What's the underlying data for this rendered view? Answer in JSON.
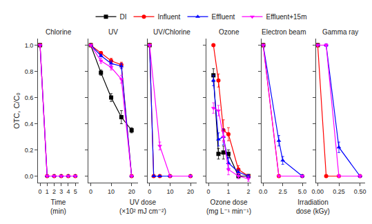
{
  "chart_data": [
    {
      "type": "line",
      "title": "Chlorine",
      "xlabel": "Time\n(min)",
      "ylabel": "OTC, C/C₀",
      "xlim": [
        -0.3,
        5.5
      ],
      "xticks": [
        0,
        1,
        2,
        3,
        4,
        5
      ],
      "ylim": [
        -0.05,
        1.05
      ],
      "yticks": [
        {
          "value": 0.0,
          "label": "0.0"
        },
        0.2,
        0.4,
        0.6,
        0.8,
        {
          "value": 1.0,
          "label": "1.0"
        }
      ],
      "grid": false,
      "series": [
        {
          "name": "DI",
          "color": "#000000",
          "marker": "square",
          "line_style": "solid",
          "x": [
            0
          ],
          "values": [
            1.0
          ],
          "errors": [
            0.0
          ]
        },
        {
          "name": "Influent",
          "color": "#ff0000",
          "marker": "circle",
          "line_style": "solid",
          "x": [
            0,
            1,
            2,
            3,
            4,
            5
          ],
          "values": [
            1.0,
            0.0,
            0.0,
            0.0,
            0.0,
            0.0
          ],
          "errors": [
            0.0,
            0.0,
            0.0,
            0.0,
            0.0,
            0.0
          ]
        },
        {
          "name": "Effluent",
          "color": "#0000ff",
          "marker": "triangle-up",
          "line_style": "solid",
          "x": [
            0,
            1,
            2,
            3,
            4,
            5
          ],
          "values": [
            1.0,
            0.0,
            0.0,
            0.0,
            0.0,
            0.0
          ],
          "errors": [
            0.0,
            0.0,
            0.0,
            0.0,
            0.0,
            0.0
          ]
        },
        {
          "name": "Effluent+15m",
          "color": "#ff00ff",
          "marker": "triangle-down",
          "line_style": "solid",
          "x": [
            0,
            1,
            2,
            3,
            4,
            5
          ],
          "values": [
            1.0,
            0.0,
            0.0,
            0.0,
            0.0,
            0.0
          ],
          "errors": [
            0.0,
            0.0,
            0.0,
            0.0,
            0.0,
            0.0
          ]
        }
      ]
    },
    {
      "type": "line",
      "title": "UV",
      "xlabel": "UV dose\n(×10² mJ cm⁻²)",
      "xlim": [
        -1,
        23
      ],
      "xticks": [
        0,
        10,
        20
      ],
      "ylim": [
        -0.05,
        1.05
      ],
      "yticks": [
        {
          "value": 0.0,
          "label": "0.0"
        },
        0.2,
        0.4,
        0.6,
        0.8,
        {
          "value": 1.0,
          "label": "1.0"
        }
      ],
      "grid": false,
      "tick_labels": "x",
      "series": [
        {
          "name": "DI",
          "color": "#000000",
          "marker": "square",
          "line_style": "solid",
          "x": [
            0,
            5,
            10,
            15,
            20
          ],
          "values": [
            1.0,
            0.79,
            0.6,
            0.45,
            0.35
          ],
          "errors": [
            0.0,
            0.02,
            0.03,
            0.05,
            0.02
          ]
        },
        {
          "name": "Influent",
          "color": "#ff0000",
          "marker": "circle",
          "line_style": "solid",
          "x": [
            0,
            5,
            10,
            15,
            20
          ],
          "values": [
            1.0,
            0.94,
            0.88,
            0.85,
            0.0
          ],
          "errors": [
            0.0,
            0.01,
            0.02,
            0.02,
            0.0
          ]
        },
        {
          "name": "Effluent",
          "color": "#0000ff",
          "marker": "triangle-up",
          "line_style": "solid",
          "x": [
            0,
            5,
            10,
            15,
            20
          ],
          "values": [
            1.0,
            0.92,
            0.86,
            0.84,
            0.0
          ],
          "errors": [
            0.0,
            0.01,
            0.02,
            0.02,
            0.0
          ]
        },
        {
          "name": "Effluent+15m",
          "color": "#ff00ff",
          "marker": "triangle-down",
          "line_style": "solid",
          "x": [
            0,
            5,
            10,
            15,
            20
          ],
          "values": [
            1.0,
            0.88,
            0.83,
            0.74,
            0.0
          ],
          "errors": [
            0.0,
            0.02,
            0.02,
            0.03,
            0.0
          ]
        }
      ]
    },
    {
      "type": "line",
      "title": "UV/Chlorine",
      "xlim": [
        -1,
        23
      ],
      "xticks": [
        0,
        10,
        20
      ],
      "ylim": [
        -0.05,
        1.05
      ],
      "yticks": [
        {
          "value": 0.0,
          "label": "0.0"
        },
        0.2,
        0.4,
        0.6,
        0.8,
        {
          "value": 1.0,
          "label": "1.0"
        }
      ],
      "grid": false,
      "tick_labels": "x",
      "series": [
        {
          "name": "DI",
          "color": "#000000",
          "marker": "square",
          "line_style": "solid",
          "x": [
            0
          ],
          "values": [
            1.0
          ],
          "errors": [
            0.0
          ]
        },
        {
          "name": "Influent",
          "color": "#ff0000",
          "marker": "circle",
          "line_style": "solid",
          "x": [
            0,
            2,
            5,
            10,
            20
          ],
          "values": [
            1.0,
            0.0,
            0.0,
            0.0,
            0.0
          ],
          "errors": [
            0.0,
            0.0,
            0.0,
            0.0,
            0.0
          ]
        },
        {
          "name": "Effluent",
          "color": "#0000ff",
          "marker": "triangle-up",
          "line_style": "solid",
          "x": [
            0,
            2,
            5,
            10,
            20
          ],
          "values": [
            1.0,
            0.0,
            0.0,
            0.0,
            0.0
          ],
          "errors": [
            0.0,
            0.0,
            0.0,
            0.0,
            0.0
          ]
        },
        {
          "name": "Effluent+15m",
          "color": "#ff00ff",
          "marker": "triangle-down",
          "line_style": "solid",
          "x": [
            0,
            5,
            10,
            20
          ],
          "values": [
            1.0,
            0.23,
            0.0,
            0.0
          ],
          "errors": [
            0.0,
            0.03,
            0.0,
            0.0
          ]
        }
      ]
    },
    {
      "type": "line",
      "title": "Ozone",
      "xlabel": "Ozone dose\n(mg L⁻¹ min⁻¹)",
      "xlim": [
        -0.1,
        2.15
      ],
      "xticks": [
        0,
        1,
        2
      ],
      "ylim": [
        -0.05,
        1.05
      ],
      "yticks": [
        {
          "value": 0.0,
          "label": "0.0"
        },
        0.2,
        0.4,
        0.6,
        0.8,
        {
          "value": 1.0,
          "label": "1.0"
        }
      ],
      "grid": false,
      "tick_labels": "x",
      "series": [
        {
          "name": "DI",
          "color": "#000000",
          "marker": "square",
          "line_style": "solid",
          "x": [
            0.25,
            0.5,
            0.75,
            1.0,
            1.5,
            2.0
          ],
          "values": [
            0.77,
            0.17,
            0.18,
            0.17,
            0.0,
            0.0
          ],
          "errors": [
            0.05,
            0.04,
            0.05,
            0.03,
            0.01,
            0.01
          ]
        },
        {
          "name": "Influent",
          "color": "#ff0000",
          "marker": "circle",
          "line_style": "solid",
          "x": [
            0.25,
            0.5,
            0.75,
            1.0,
            1.5,
            2.0
          ],
          "values": [
            1.0,
            0.73,
            0.35,
            0.32,
            0.05,
            0.0
          ],
          "errors": [
            0.0,
            0.05,
            0.08,
            0.05,
            0.03,
            0.01
          ]
        },
        {
          "name": "Effluent",
          "color": "#0000ff",
          "marker": "triangle-up",
          "line_style": "solid",
          "x": [
            0.25,
            0.5,
            0.75,
            1.0,
            1.5,
            2.0
          ],
          "values": [
            0.73,
            0.28,
            0.3,
            0.1,
            0.03,
            0.0
          ],
          "errors": [
            0.04,
            0.05,
            0.06,
            0.04,
            0.02,
            0.01
          ]
        },
        {
          "name": "Effluent+15m",
          "color": "#ff00ff",
          "marker": "triangle-down",
          "line_style": "solid",
          "x": [
            0.25,
            0.5,
            0.75,
            1.0,
            1.5,
            2.0
          ],
          "values": [
            0.52,
            0.5,
            0.3,
            0.05,
            0.0,
            -0.02
          ],
          "errors": [
            0.04,
            0.04,
            0.04,
            0.04,
            0.02,
            0.02
          ]
        }
      ]
    },
    {
      "type": "line",
      "title": "Electron beam",
      "xlabel": "Irradiation\ndose (kGy)",
      "xlim": [
        -0.25,
        5.5
      ],
      "xticks": [
        {
          "value": 0.0,
          "label": "0.0"
        },
        2.5,
        {
          "value": 5.0,
          "label": "5.0"
        }
      ],
      "ylim": [
        -0.05,
        1.05
      ],
      "yticks": [
        {
          "value": 0.0,
          "label": "0.0"
        },
        0.2,
        0.4,
        0.6,
        0.8,
        {
          "value": 1.0,
          "label": "1.0"
        }
      ],
      "grid": false,
      "tick_labels": "x",
      "series": [
        {
          "name": "DI",
          "color": "#000000",
          "marker": "square",
          "line_style": "solid",
          "x": [
            0.0
          ],
          "values": [
            1.0
          ],
          "errors": [
            0.0
          ]
        },
        {
          "name": "Influent",
          "color": "#ff0000",
          "marker": "circle",
          "line_style": "solid",
          "x": [
            0.0,
            2.0,
            5.0
          ],
          "values": [
            1.0,
            0.0,
            0.0
          ],
          "errors": [
            0.0,
            0.0,
            0.0
          ]
        },
        {
          "name": "Effluent",
          "color": "#0000ff",
          "marker": "triangle-up",
          "line_style": "solid",
          "x": [
            0.0,
            2.0,
            2.5,
            5.0
          ],
          "values": [
            1.0,
            0.27,
            0.12,
            0.0
          ],
          "errors": [
            0.0,
            0.04,
            0.03,
            0.01
          ]
        },
        {
          "name": "Effluent+15m",
          "color": "#ff00ff",
          "marker": "triangle-down",
          "line_style": "solid",
          "x": [
            0.0,
            2.0,
            5.0
          ],
          "values": [
            1.0,
            0.0,
            0.0
          ],
          "errors": [
            0.0,
            0.0,
            0.0
          ]
        }
      ]
    },
    {
      "type": "line",
      "title": "Gamma ray",
      "xlim": [
        -0.02,
        0.56
      ],
      "xticks": [
        {
          "value": 0.0,
          "label": "0.00"
        },
        0.25,
        {
          "value": 0.5,
          "label": "0.50"
        }
      ],
      "ylim": [
        -0.05,
        1.05
      ],
      "yticks": [
        {
          "value": 0.0,
          "label": "0.0"
        },
        0.2,
        0.4,
        0.6,
        0.8,
        {
          "value": 1.0,
          "label": "1.0"
        }
      ],
      "grid": false,
      "tick_labels": "x",
      "legend": "top",
      "series": [
        {
          "name": "DI",
          "color": "#000000",
          "marker": "square",
          "line_style": "solid",
          "x": [
            0.0
          ],
          "values": [
            1.0
          ],
          "errors": [
            0.0
          ]
        },
        {
          "name": "Influent",
          "color": "#ff0000",
          "marker": "circle",
          "line_style": "solid",
          "x": [
            0.0,
            0.1,
            0.25,
            0.5
          ],
          "values": [
            1.0,
            0.0,
            0.0,
            0.0
          ],
          "errors": [
            0.0,
            0.0,
            0.0,
            0.0
          ]
        },
        {
          "name": "Effluent",
          "color": "#0000ff",
          "marker": "triangle-up",
          "line_style": "solid",
          "x": [
            0.0,
            0.1,
            0.25,
            0.5
          ],
          "values": [
            1.0,
            1.0,
            0.22,
            0.0
          ],
          "errors": [
            0.0,
            0.01,
            0.04,
            0.01
          ]
        },
        {
          "name": "Effluent+15m",
          "color": "#ff00ff",
          "marker": "triangle-down",
          "line_style": "solid",
          "x": [
            0.0,
            0.1,
            0.25,
            0.5
          ],
          "values": [
            1.0,
            1.0,
            0.0,
            0.0
          ],
          "errors": [
            0.0,
            0.01,
            0.01,
            0.01
          ]
        }
      ]
    }
  ]
}
